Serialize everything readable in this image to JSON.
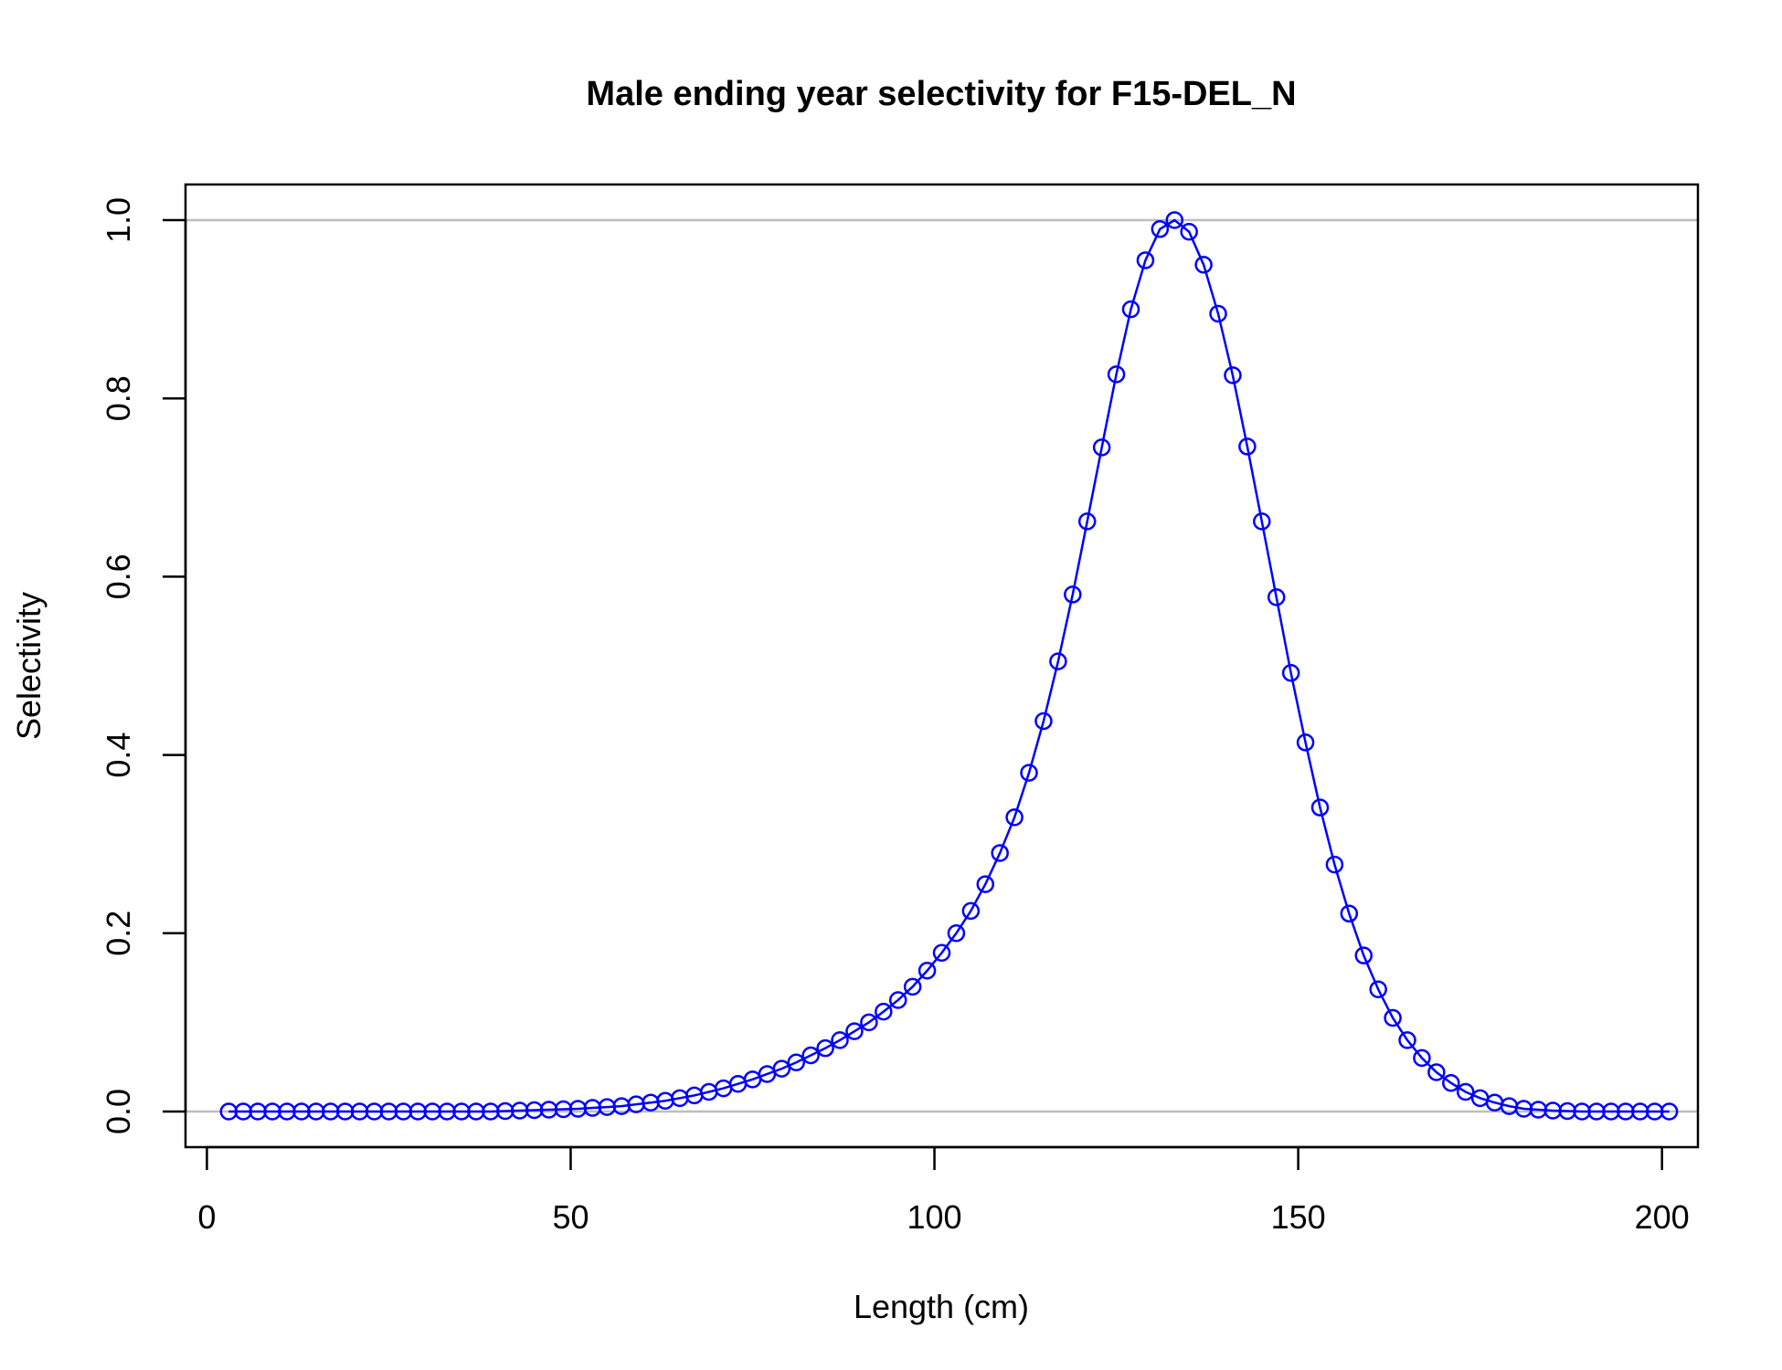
{
  "chart_data": {
    "type": "line",
    "title": "Male ending year selectivity for F15-DEL_N",
    "xlabel": "Length (cm)",
    "ylabel": "Selectivity",
    "xlim": [
      -2.94,
      204.94
    ],
    "ylim": [
      -0.04,
      1.04
    ],
    "xticks": [
      0,
      50,
      100,
      150,
      200
    ],
    "yticks": [
      0.0,
      0.2,
      0.4,
      0.6,
      0.8,
      1.0
    ],
    "ytick_labels": [
      "0.0",
      "0.2",
      "0.4",
      "0.6",
      "0.8",
      "1.0"
    ],
    "reference_lines_y": [
      0,
      1
    ],
    "line_color": "#0000ff",
    "refline_color": "#bebebe",
    "marker": "open-circle",
    "grid": false,
    "legend": "none",
    "x": [
      3,
      5,
      7,
      9,
      11,
      13,
      15,
      17,
      19,
      21,
      23,
      25,
      27,
      29,
      31,
      33,
      35,
      37,
      39,
      41,
      43,
      45,
      47,
      49,
      51,
      53,
      55,
      57,
      59,
      61,
      63,
      65,
      67,
      69,
      71,
      73,
      75,
      77,
      79,
      81,
      83,
      85,
      87,
      89,
      91,
      93,
      95,
      97,
      99,
      101,
      103,
      105,
      107,
      109,
      111,
      113,
      115,
      117,
      119,
      121,
      123,
      125,
      127,
      129,
      131,
      133,
      135,
      137,
      139,
      141,
      143,
      145,
      147,
      149,
      151,
      153,
      155,
      157,
      159,
      161,
      163,
      165,
      167,
      169,
      171,
      173,
      175,
      177,
      179,
      181,
      183,
      185,
      187,
      189,
      191,
      193,
      195,
      197,
      199,
      201
    ],
    "series": [
      {
        "values": [
          0,
          0,
          0,
          0,
          0,
          0,
          0,
          0,
          0,
          0,
          0,
          0,
          0,
          0,
          0,
          0,
          0,
          0,
          0,
          0.0005,
          0.001,
          0.0015,
          0.002,
          0.0025,
          0.003,
          0.004,
          0.005,
          0.006,
          0.008,
          0.01,
          0.012,
          0.015,
          0.018,
          0.022,
          0.026,
          0.031,
          0.036,
          0.042,
          0.048,
          0.055,
          0.063,
          0.071,
          0.08,
          0.09,
          0.1,
          0.112,
          0.125,
          0.14,
          0.158,
          0.178,
          0.2,
          0.225,
          0.255,
          0.29,
          0.33,
          0.38,
          0.438,
          0.505,
          0.58,
          0.662,
          0.745,
          0.827,
          0.9,
          0.955,
          0.99,
          1.0,
          0.987,
          0.95,
          0.895,
          0.826,
          0.746,
          0.662,
          0.577,
          0.492,
          0.414,
          0.341,
          0.277,
          0.222,
          0.175,
          0.137,
          0.105,
          0.08,
          0.06,
          0.044,
          0.032,
          0.022,
          0.015,
          0.01,
          0.006,
          0.003,
          0.002,
          0.001,
          0.0005,
          0,
          0,
          0,
          0,
          0,
          0,
          0
        ]
      }
    ]
  }
}
